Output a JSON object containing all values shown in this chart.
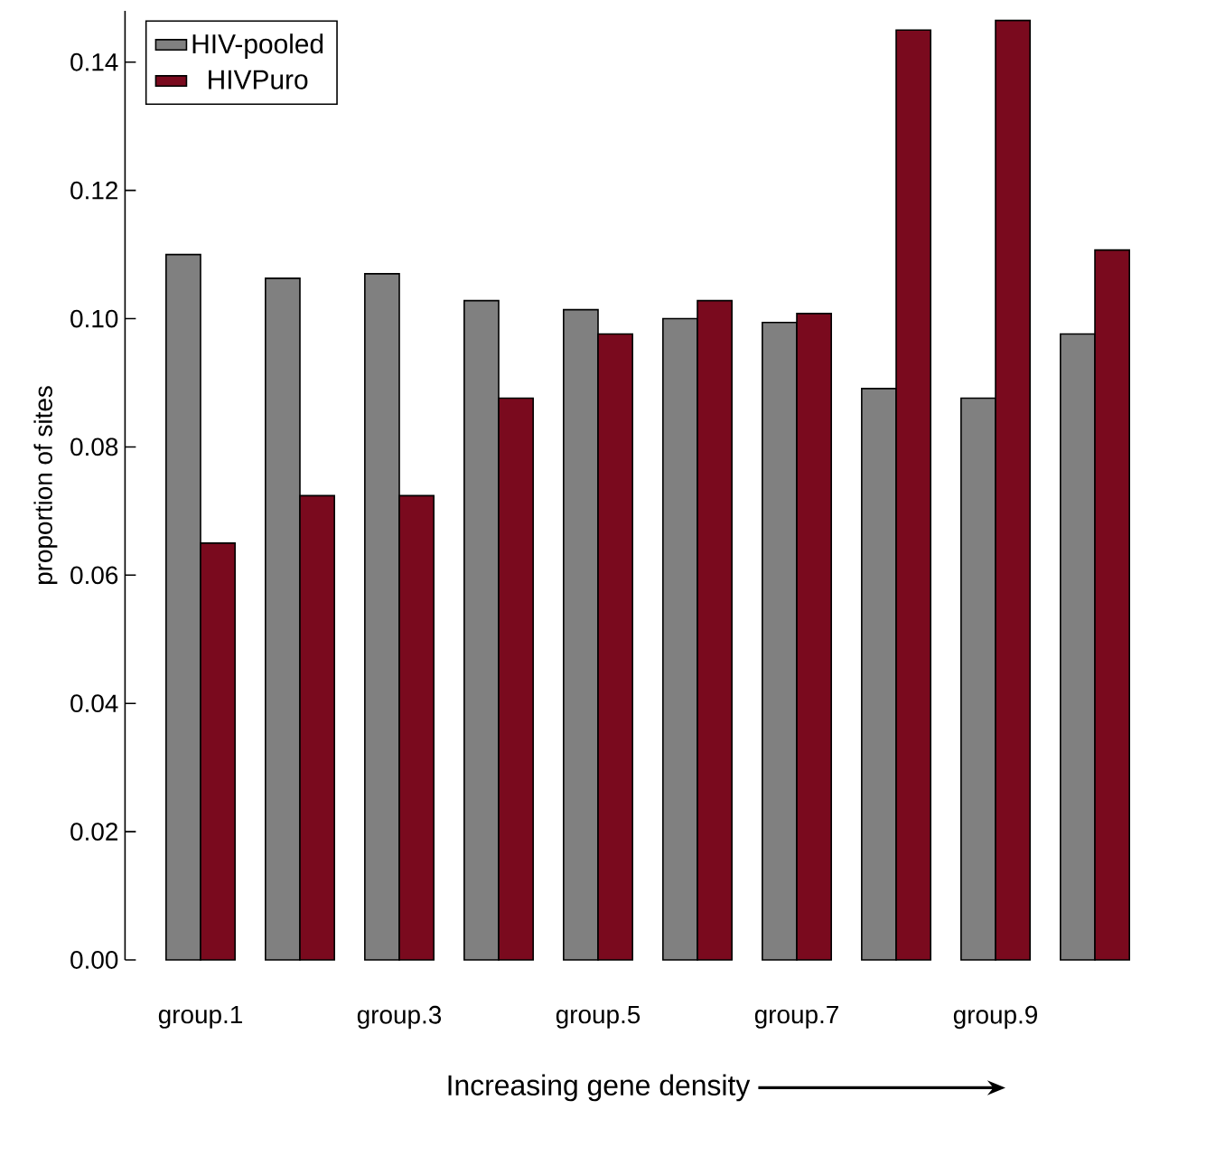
{
  "chart_data": {
    "type": "bar",
    "ylabel": "proportion of sites",
    "xlabel": "Increasing gene density",
    "categories": [
      "group.1",
      null,
      "group.3",
      null,
      "group.5",
      null,
      "group.7",
      null,
      "group.9",
      null
    ],
    "series": [
      {
        "name": "HIV-pooled",
        "color": "#808080",
        "values": [
          0.11,
          0.1063,
          0.107,
          0.1028,
          0.1014,
          0.1,
          0.0994,
          0.0891,
          0.0876,
          0.0976
        ]
      },
      {
        "name": "HIVPuro",
        "color": "#7a0a1e",
        "values": [
          0.065,
          0.0724,
          0.0724,
          0.0876,
          0.0976,
          0.1028,
          0.1008,
          0.145,
          0.1465,
          0.1107
        ]
      }
    ],
    "ylim": [
      0,
      0.148
    ],
    "yticks": [
      {
        "value": 0,
        "label": "0.00"
      },
      {
        "value": 0.02,
        "label": "0.02"
      },
      {
        "value": 0.04,
        "label": "0.04"
      },
      {
        "value": 0.06,
        "label": "0.06"
      },
      {
        "value": 0.08,
        "label": "0.08"
      },
      {
        "value": 0.1,
        "label": "0.10"
      },
      {
        "value": 0.12,
        "label": "0.12"
      },
      {
        "value": 0.14,
        "label": "0.14"
      }
    ],
    "legend": "top left",
    "grid": false
  }
}
